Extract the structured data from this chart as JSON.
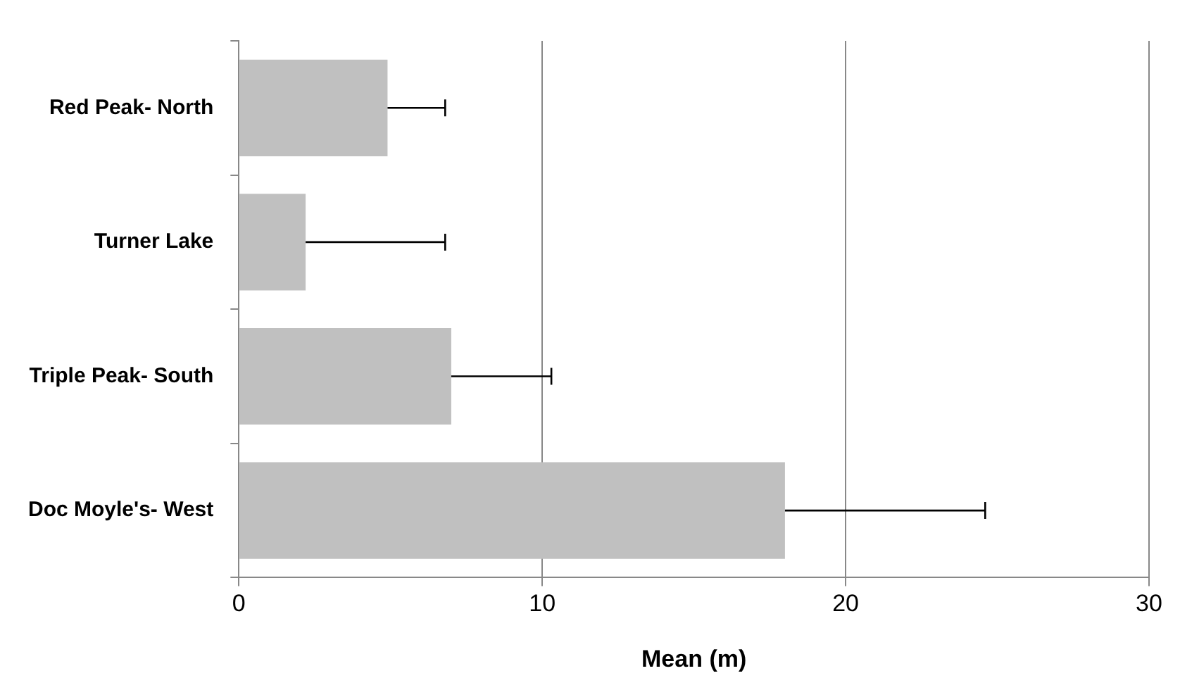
{
  "chart_data": {
    "type": "bar",
    "orientation": "horizontal",
    "xlabel": "Mean (m)",
    "categories": [
      "Red Peak- North",
      "Turner Lake",
      "Triple Peak- South",
      "Doc Moyle's- West"
    ],
    "values": [
      4.9,
      2.2,
      7.0,
      18.0
    ],
    "errors": [
      [
        4.9,
        6.8
      ],
      [
        2.2,
        6.8
      ],
      [
        7.0,
        10.3
      ],
      [
        18.0,
        24.6
      ]
    ],
    "color": "#c0c0c0",
    "xlim": [
      0,
      30
    ],
    "xticks": [
      0,
      10,
      20,
      30
    ],
    "grid": "x",
    "legend": false
  }
}
